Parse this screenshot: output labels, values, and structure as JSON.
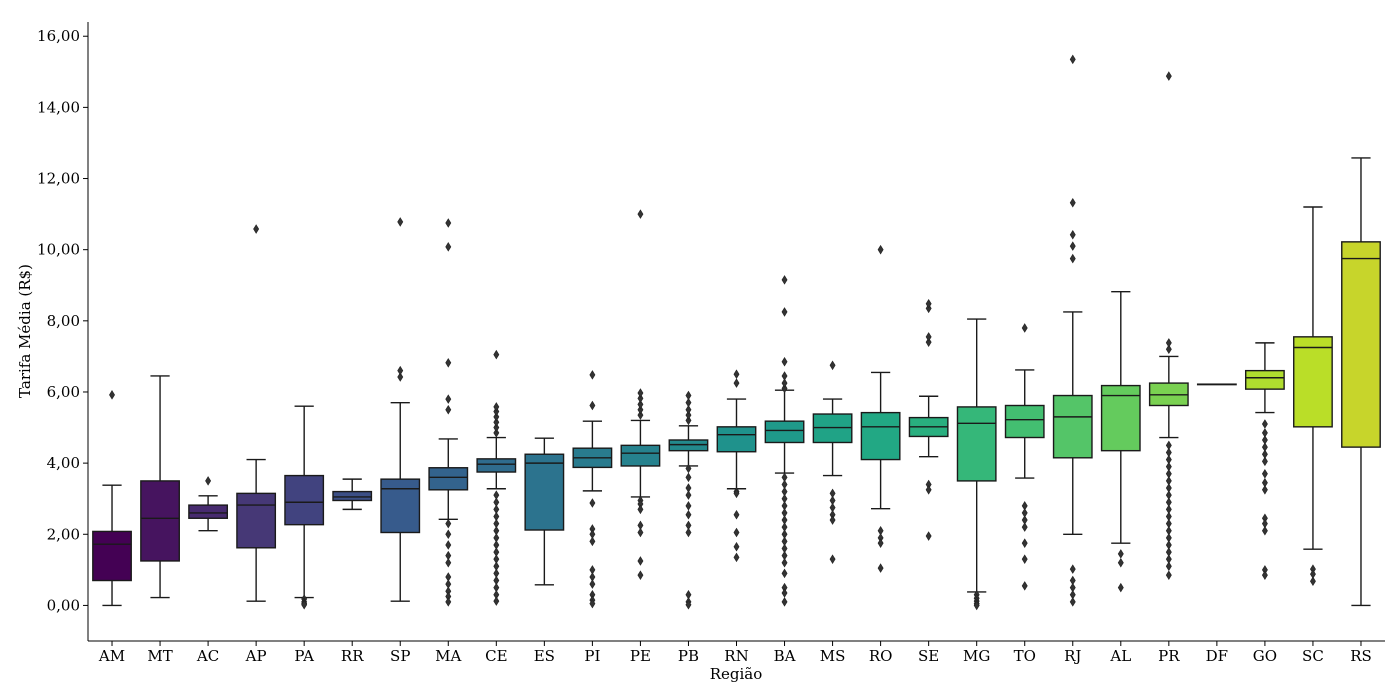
{
  "chart_data": {
    "type": "box",
    "xlabel": "Região",
    "ylabel": "Tarifa Média (R$)",
    "ylim": [
      -1,
      16.4
    ],
    "yticks": [
      0,
      2,
      4,
      6,
      8,
      10,
      12,
      14,
      16
    ],
    "ytick_labels": [
      "0,00",
      "2,00",
      "4,00",
      "6,00",
      "8,00",
      "10,00",
      "12,00",
      "14,00",
      "16,00"
    ],
    "grid": false,
    "legend": "none",
    "box_stroke": "#1a1a1a",
    "categories": [
      {
        "label": "AM",
        "color": "#440154",
        "whislo": 0.0,
        "q1": 0.7,
        "med": 1.72,
        "q3": 2.08,
        "whishi": 3.38,
        "fliers": [
          5.92
        ]
      },
      {
        "label": "MT",
        "color": "#46145f",
        "whislo": 0.22,
        "q1": 1.25,
        "med": 2.45,
        "q3": 3.5,
        "whishi": 6.45,
        "fliers": []
      },
      {
        "label": "AC",
        "color": "#472b6f",
        "whislo": 2.1,
        "q1": 2.45,
        "med": 2.6,
        "q3": 2.82,
        "whishi": 3.08,
        "fliers": [
          3.5
        ]
      },
      {
        "label": "AP",
        "color": "#463876",
        "whislo": 0.12,
        "q1": 1.62,
        "med": 2.82,
        "q3": 3.15,
        "whishi": 4.1,
        "fliers": [
          10.58
        ]
      },
      {
        "label": "PA",
        "color": "#41437f",
        "whislo": 0.22,
        "q1": 2.27,
        "med": 2.9,
        "q3": 3.65,
        "whishi": 5.6,
        "fliers": [
          0.18,
          0.1,
          0.05,
          0.02
        ]
      },
      {
        "label": "RR",
        "color": "#3c4f86",
        "whislo": 2.7,
        "q1": 2.95,
        "med": 3.05,
        "q3": 3.2,
        "whishi": 3.55,
        "fliers": []
      },
      {
        "label": "SP",
        "color": "#375b8c",
        "whislo": 0.12,
        "q1": 2.05,
        "med": 3.28,
        "q3": 3.55,
        "whishi": 5.7,
        "fliers": [
          6.42,
          6.6,
          10.78
        ]
      },
      {
        "label": "MA",
        "color": "#33638d",
        "whislo": 2.42,
        "q1": 3.25,
        "med": 3.6,
        "q3": 3.87,
        "whishi": 4.68,
        "fliers": [
          2.3,
          2.0,
          1.7,
          1.4,
          1.2,
          0.8,
          0.6,
          0.4,
          0.25,
          0.1,
          5.5,
          5.8,
          6.82,
          10.08,
          10.75
        ]
      },
      {
        "label": "CE",
        "color": "#2f6c8e",
        "whislo": 3.28,
        "q1": 3.75,
        "med": 3.97,
        "q3": 4.12,
        "whishi": 4.72,
        "fliers": [
          3.1,
          2.9,
          2.7,
          2.5,
          2.3,
          2.1,
          1.9,
          1.7,
          1.5,
          1.3,
          1.1,
          0.9,
          0.7,
          0.5,
          0.3,
          0.12,
          4.85,
          5.0,
          5.15,
          5.3,
          5.45,
          5.58,
          7.05
        ]
      },
      {
        "label": "ES",
        "color": "#2c738e",
        "whislo": 0.58,
        "q1": 2.12,
        "med": 4.0,
        "q3": 4.25,
        "whishi": 4.7,
        "fliers": []
      },
      {
        "label": "PI",
        "color": "#297b8e",
        "whislo": 3.22,
        "q1": 3.88,
        "med": 4.15,
        "q3": 4.42,
        "whishi": 5.18,
        "fliers": [
          2.88,
          2.15,
          2.0,
          1.8,
          1.0,
          0.8,
          0.6,
          0.3,
          0.15,
          0.05,
          5.62,
          6.48
        ]
      },
      {
        "label": "PE",
        "color": "#26828e",
        "whislo": 3.05,
        "q1": 3.92,
        "med": 4.28,
        "q3": 4.5,
        "whishi": 5.2,
        "fliers": [
          2.95,
          2.85,
          2.7,
          2.25,
          2.05,
          1.25,
          0.85,
          5.35,
          5.5,
          5.65,
          5.82,
          5.97,
          11.0
        ]
      },
      {
        "label": "PB",
        "color": "#238a8d",
        "whislo": 3.92,
        "q1": 4.35,
        "med": 4.52,
        "q3": 4.65,
        "whishi": 5.05,
        "fliers": [
          3.85,
          3.6,
          3.3,
          3.1,
          2.8,
          2.55,
          2.25,
          2.05,
          0.3,
          0.1,
          0.02,
          5.2,
          5.35,
          5.5,
          5.7,
          5.9
        ]
      },
      {
        "label": "RN",
        "color": "#1f928c",
        "whislo": 3.28,
        "q1": 4.32,
        "med": 4.8,
        "q3": 5.02,
        "whishi": 5.8,
        "fliers": [
          3.2,
          3.15,
          2.55,
          2.05,
          1.65,
          1.35,
          6.25,
          6.5
        ]
      },
      {
        "label": "BA",
        "color": "#1f998a",
        "whislo": 3.72,
        "q1": 4.58,
        "med": 4.92,
        "q3": 5.18,
        "whishi": 6.05,
        "fliers": [
          3.6,
          3.4,
          3.2,
          3.0,
          2.8,
          2.6,
          2.4,
          2.2,
          2.0,
          1.8,
          1.6,
          1.4,
          1.2,
          0.9,
          0.5,
          0.35,
          0.1,
          6.1,
          6.25,
          6.45,
          6.85,
          8.25,
          9.15
        ]
      },
      {
        "label": "MS",
        "color": "#20a386",
        "whislo": 3.65,
        "q1": 4.58,
        "med": 5.0,
        "q3": 5.38,
        "whishi": 5.8,
        "fliers": [
          3.15,
          2.95,
          2.75,
          2.55,
          2.4,
          1.3,
          6.75
        ]
      },
      {
        "label": "RO",
        "color": "#22a884",
        "whislo": 2.72,
        "q1": 4.1,
        "med": 5.02,
        "q3": 5.42,
        "whishi": 6.55,
        "fliers": [
          2.1,
          1.9,
          1.75,
          1.05,
          10.0
        ]
      },
      {
        "label": "SE",
        "color": "#29af7f",
        "whislo": 4.18,
        "q1": 4.75,
        "med": 5.02,
        "q3": 5.28,
        "whishi": 5.88,
        "fliers": [
          3.4,
          3.25,
          1.95,
          7.4,
          7.55,
          8.35,
          8.48
        ]
      },
      {
        "label": "MG",
        "color": "#35b779",
        "whislo": 0.38,
        "q1": 3.5,
        "med": 5.12,
        "q3": 5.58,
        "whishi": 8.05,
        "fliers": [
          0.3,
          0.2,
          0.12,
          0.05,
          0.0
        ]
      },
      {
        "label": "TO",
        "color": "#43bf71",
        "whislo": 3.58,
        "q1": 4.72,
        "med": 5.22,
        "q3": 5.62,
        "whishi": 6.62,
        "fliers": [
          2.8,
          2.6,
          2.4,
          2.2,
          1.75,
          1.3,
          0.55,
          7.8
        ]
      },
      {
        "label": "RJ",
        "color": "#54c568",
        "whislo": 2.0,
        "q1": 4.15,
        "med": 5.3,
        "q3": 5.9,
        "whishi": 8.25,
        "fliers": [
          1.02,
          0.7,
          0.5,
          0.3,
          0.1,
          9.75,
          10.1,
          10.42,
          11.32,
          15.35
        ]
      },
      {
        "label": "AL",
        "color": "#64cb5d",
        "whislo": 1.75,
        "q1": 4.35,
        "med": 5.9,
        "q3": 6.18,
        "whishi": 8.82,
        "fliers": [
          1.45,
          1.2,
          0.5
        ]
      },
      {
        "label": "PR",
        "color": "#7ad151",
        "whislo": 4.72,
        "q1": 5.62,
        "med": 5.92,
        "q3": 6.25,
        "whishi": 7.0,
        "fliers": [
          4.5,
          4.3,
          4.1,
          3.9,
          3.7,
          3.5,
          3.3,
          3.1,
          2.9,
          2.7,
          2.5,
          2.3,
          2.1,
          1.9,
          1.7,
          1.5,
          1.3,
          1.1,
          0.85,
          7.2,
          7.38,
          14.88
        ]
      },
      {
        "label": "DF",
        "color": "#a5db36",
        "whislo": 6.22,
        "q1": 6.22,
        "med": 6.22,
        "q3": 6.22,
        "whishi": 6.22,
        "fliers": []
      },
      {
        "label": "GO",
        "color": "#b0dd2f",
        "whislo": 5.42,
        "q1": 6.08,
        "med": 6.4,
        "q3": 6.6,
        "whishi": 7.38,
        "fliers": [
          5.1,
          4.85,
          4.65,
          4.45,
          4.25,
          4.05,
          3.7,
          3.45,
          3.25,
          2.45,
          2.3,
          2.1,
          1.0,
          0.85
        ]
      },
      {
        "label": "SC",
        "color": "#bade28",
        "whislo": 1.58,
        "q1": 5.02,
        "med": 7.25,
        "q3": 7.55,
        "whishi": 11.2,
        "fliers": [
          1.02,
          0.88,
          0.68
        ]
      },
      {
        "label": "RS",
        "color": "#c7d52b",
        "whislo": 0.0,
        "q1": 4.45,
        "med": 9.75,
        "q3": 10.22,
        "whishi": 12.58,
        "fliers": []
      }
    ]
  }
}
